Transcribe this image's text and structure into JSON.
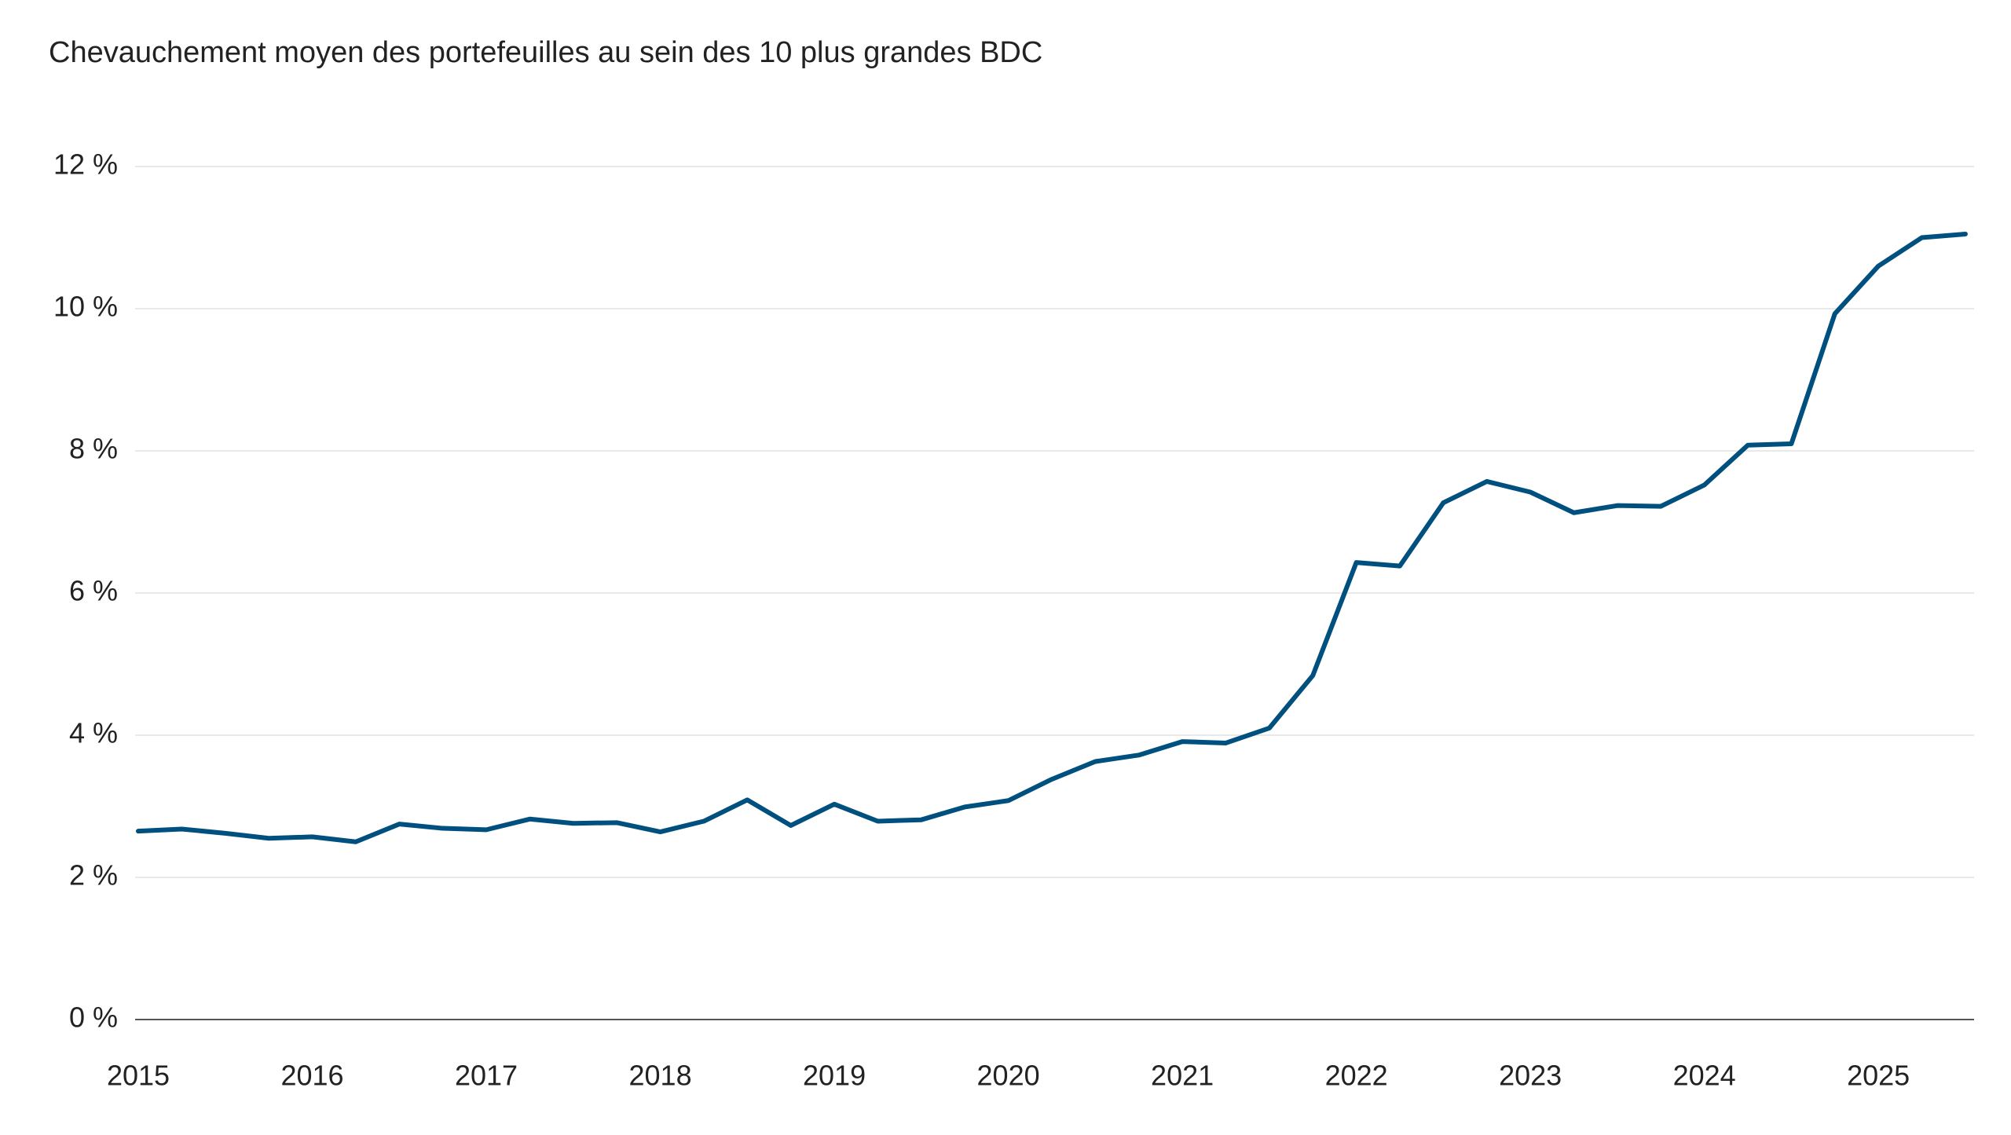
{
  "chart_data": {
    "type": "line",
    "title": "Chevauchement moyen des portefeuilles au sein des 10 plus grandes BDC",
    "x": [
      2015,
      2015.25,
      2015.5,
      2015.75,
      2016,
      2016.25,
      2016.5,
      2016.75,
      2017,
      2017.25,
      2017.5,
      2017.75,
      2018,
      2018.25,
      2018.5,
      2018.75,
      2019,
      2019.25,
      2019.5,
      2019.75,
      2020,
      2020.25,
      2020.5,
      2020.75,
      2021,
      2021.25,
      2021.5,
      2021.75,
      2022,
      2022.25,
      2022.5,
      2022.75,
      2023,
      2023.25,
      2023.5,
      2023.75,
      2024,
      2024.25,
      2024.5,
      2024.75,
      2025,
      2025.25,
      2025.5
    ],
    "series": [
      {
        "color": "#00507f",
        "values": [
          2.65,
          2.68,
          2.62,
          2.55,
          2.57,
          2.5,
          2.75,
          2.69,
          2.67,
          2.82,
          2.76,
          2.77,
          2.64,
          2.79,
          3.09,
          2.73,
          3.03,
          2.79,
          2.81,
          2.99,
          3.08,
          3.38,
          3.63,
          3.72,
          3.91,
          3.89,
          4.1,
          4.84,
          6.43,
          6.38,
          7.27,
          7.57,
          7.42,
          7.13,
          7.23,
          7.22,
          7.52,
          8.08,
          8.1,
          9.93,
          10.6,
          11.0,
          11.05
        ]
      }
    ],
    "xlim": [
      2015,
      2025.55
    ],
    "xticks": [
      2015,
      2016,
      2017,
      2018,
      2019,
      2020,
      2021,
      2022,
      2023,
      2024,
      2025
    ],
    "ylim": [
      0,
      12
    ],
    "yticks": [
      {
        "value": 0,
        "label": "0 %"
      },
      {
        "value": 2,
        "label": "2 %"
      },
      {
        "value": 4,
        "label": "4 %"
      },
      {
        "value": 6,
        "label": "6 %"
      },
      {
        "value": 8,
        "label": "8 %"
      },
      {
        "value": 10,
        "label": "10 %"
      },
      {
        "value": 12,
        "label": "12 %"
      }
    ],
    "grid": true
  }
}
